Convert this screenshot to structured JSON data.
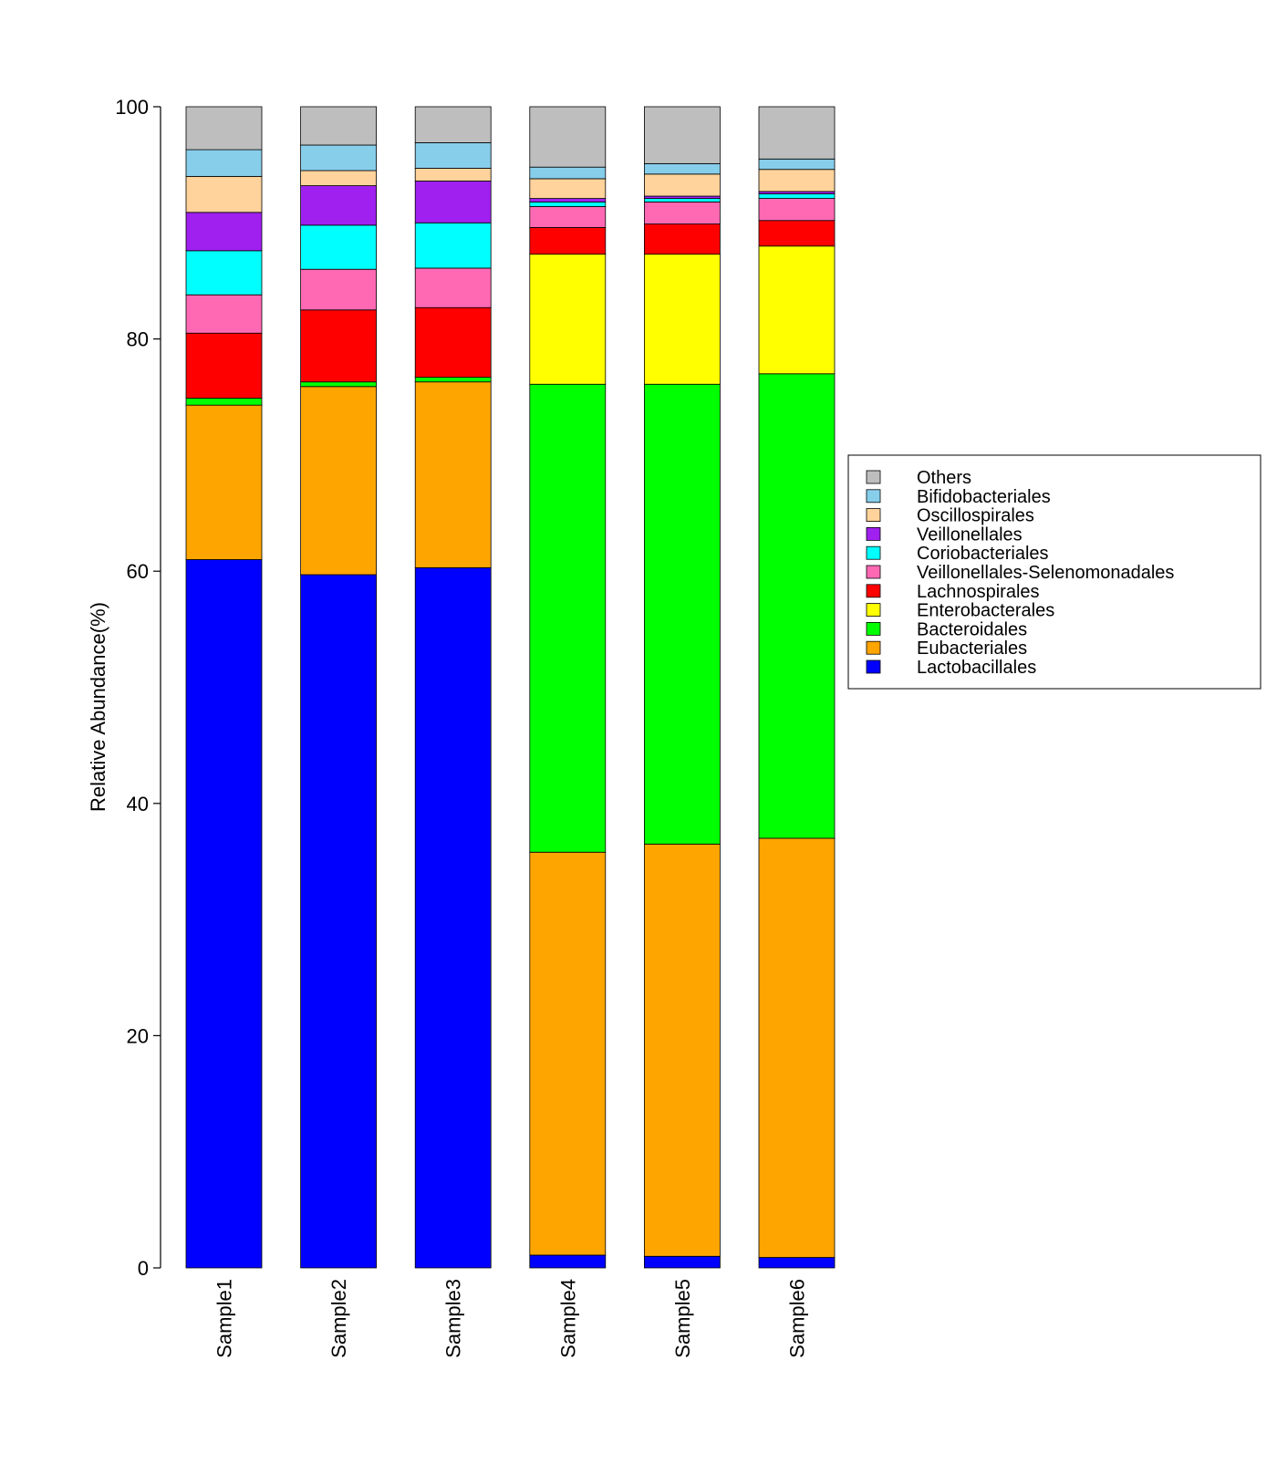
{
  "chart_data": {
    "type": "bar",
    "stacked": true,
    "title": "",
    "xlabel": "",
    "ylabel": "Relative Abundance(%)",
    "ylim": [
      0,
      100
    ],
    "yticks": [
      "0",
      "20",
      "40",
      "60",
      "80",
      "100"
    ],
    "categories": [
      "Sample1",
      "Sample2",
      "Sample3",
      "Sample4",
      "Sample5",
      "Sample6"
    ],
    "series": [
      {
        "name": "Lactobacillales",
        "color": "#0000ff",
        "values": [
          61.0,
          59.7,
          60.3,
          1.1,
          1.0,
          0.9
        ]
      },
      {
        "name": "Eubacteriales",
        "color": "#ffa500",
        "values": [
          13.3,
          16.2,
          16.0,
          34.7,
          35.5,
          36.1
        ]
      },
      {
        "name": "Bacteroidales",
        "color": "#00ff00",
        "values": [
          0.6,
          0.4,
          0.4,
          40.3,
          39.6,
          40.0
        ]
      },
      {
        "name": "Enterobacterales",
        "color": "#ffff00",
        "values": [
          0.0,
          0.0,
          0.0,
          11.2,
          11.2,
          11.0
        ]
      },
      {
        "name": "Lachnospirales",
        "color": "#ff0000",
        "values": [
          5.6,
          6.2,
          6.0,
          2.3,
          2.6,
          2.2
        ]
      },
      {
        "name": "Veillonellales-Selenomonadales",
        "color": "#ff69b4",
        "values": [
          3.3,
          3.5,
          3.4,
          1.8,
          1.9,
          1.9
        ]
      },
      {
        "name": "Coriobacteriales",
        "color": "#00ffff",
        "values": [
          3.8,
          3.8,
          3.9,
          0.4,
          0.3,
          0.4
        ]
      },
      {
        "name": "Veillonellales",
        "color": "#a020f0",
        "values": [
          3.3,
          3.4,
          3.6,
          0.3,
          0.2,
          0.2
        ]
      },
      {
        "name": "Oscillospirales",
        "color": "#ffd39b",
        "values": [
          3.1,
          1.3,
          1.1,
          1.7,
          1.9,
          1.9
        ]
      },
      {
        "name": "Bifidobacteriales",
        "color": "#87ceeb",
        "values": [
          2.3,
          2.2,
          2.2,
          1.0,
          0.9,
          0.9
        ]
      },
      {
        "name": "Others",
        "color": "#bebebe",
        "values": [
          3.7,
          3.3,
          3.1,
          5.2,
          4.9,
          4.5
        ]
      }
    ],
    "grid": false,
    "legend_position": "right",
    "legend_order": [
      "Others",
      "Bifidobacteriales",
      "Oscillospirales",
      "Veillonellales",
      "Coriobacteriales",
      "Veillonellales-Selenomonadales",
      "Lachnospirales",
      "Enterobacterales",
      "Bacteroidales",
      "Eubacteriales",
      "Lactobacillales"
    ]
  }
}
